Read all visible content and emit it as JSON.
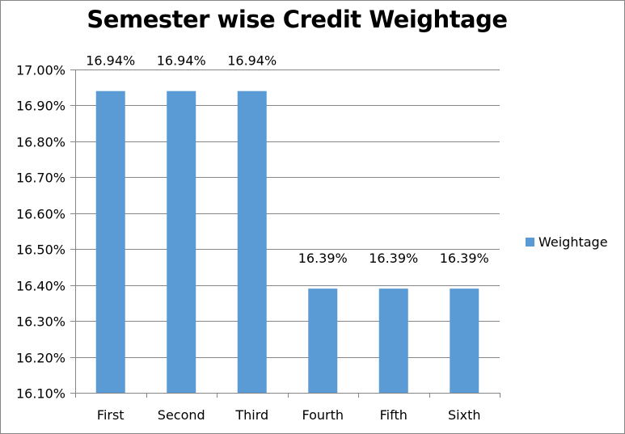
{
  "chart_data": {
    "type": "bar",
    "title": "Semester wise Credit Weightage",
    "categories": [
      "First",
      "Second",
      "Third",
      "Fourth",
      "Fifth",
      "Sixth"
    ],
    "series": [
      {
        "name": "Weightage",
        "values": [
          16.94,
          16.94,
          16.94,
          16.39,
          16.39,
          16.39
        ],
        "data_labels": [
          "16.94%",
          "16.94%",
          "16.94%",
          "16.39%",
          "16.39%",
          "16.39%"
        ],
        "color": "#5B9BD5"
      }
    ],
    "ylim": [
      16.1,
      17.0
    ],
    "y_ticks": [
      17.0,
      16.9,
      16.8,
      16.7,
      16.6,
      16.5,
      16.4,
      16.3,
      16.2,
      16.1
    ],
    "y_tick_labels": [
      "17.00%",
      "16.90%",
      "16.80%",
      "16.70%",
      "16.60%",
      "16.50%",
      "16.40%",
      "16.30%",
      "16.20%",
      "16.10%"
    ],
    "grid": true,
    "legend_position": "right",
    "gridline_color": "#868686"
  }
}
